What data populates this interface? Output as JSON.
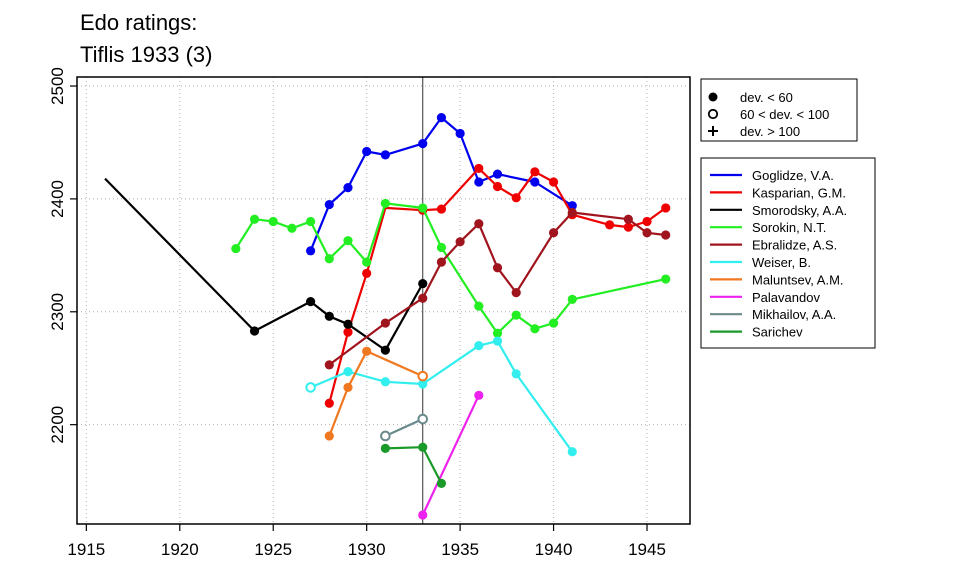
{
  "chart_data": {
    "type": "line",
    "title_line1": "Edo ratings:",
    "title_line2": "Tiflis 1933 (3)",
    "xlabel": "",
    "ylabel": "",
    "xlim": [
      1914.5,
      1947.3
    ],
    "ylim": [
      2112,
      2508
    ],
    "xticks": [
      1915,
      1920,
      1925,
      1930,
      1935,
      1940,
      1945
    ],
    "yticks": [
      2200,
      2300,
      2400,
      2500
    ],
    "grid": true,
    "reference_line_x": 1933,
    "marker_legend": [
      {
        "symbol": "filled-circle",
        "label": "dev. < 60"
      },
      {
        "symbol": "open-circle",
        "label": "60 < dev. < 100"
      },
      {
        "symbol": "plus",
        "label": "dev. > 100"
      }
    ],
    "series": [
      {
        "name": "Goglidze, V.A.",
        "color": "#0000ee",
        "points": [
          [
            1927,
            2354,
            "filled"
          ],
          [
            1928,
            2395,
            "filled"
          ],
          [
            1929,
            2410,
            "filled"
          ],
          [
            1930,
            2442,
            "filled"
          ],
          [
            1931,
            2439,
            "filled"
          ],
          [
            1933,
            2449,
            "filled"
          ],
          [
            1934,
            2472,
            "filled"
          ],
          [
            1935,
            2458,
            "filled"
          ],
          [
            1936,
            2415,
            "filled"
          ],
          [
            1937,
            2422,
            "filled"
          ],
          [
            1939,
            2415,
            "filled"
          ],
          [
            1941,
            2394,
            "filled"
          ]
        ]
      },
      {
        "name": "Kasparian, G.M.",
        "color": "#ee0000",
        "points": [
          [
            1928,
            2219,
            "filled"
          ],
          [
            1929,
            2282,
            "filled"
          ],
          [
            1930,
            2334,
            "filled"
          ],
          [
            1931,
            2392,
            "none"
          ],
          [
            1933,
            2390,
            "filled"
          ],
          [
            1934,
            2391,
            "filled"
          ],
          [
            1936,
            2427,
            "filled"
          ],
          [
            1937,
            2411,
            "filled"
          ],
          [
            1938,
            2401,
            "filled"
          ],
          [
            1939,
            2424,
            "filled"
          ],
          [
            1940,
            2415,
            "filled"
          ],
          [
            1941,
            2386,
            "filled"
          ],
          [
            1943,
            2377,
            "filled"
          ],
          [
            1944,
            2375,
            "filled"
          ],
          [
            1945,
            2380,
            "filled"
          ],
          [
            1946,
            2392,
            "filled"
          ]
        ]
      },
      {
        "name": "Smorodsky, A.A.",
        "color": "#000000",
        "points": [
          [
            1916,
            2418,
            "none"
          ],
          [
            1924,
            2283,
            "filled"
          ],
          [
            1927,
            2309,
            "filled"
          ],
          [
            1928,
            2296,
            "filled"
          ],
          [
            1929,
            2289,
            "filled"
          ],
          [
            1931,
            2266,
            "filled"
          ],
          [
            1933,
            2325,
            "filled"
          ]
        ]
      },
      {
        "name": "Sorokin, N.T.",
        "color": "#22ee22",
        "points": [
          [
            1923,
            2356,
            "filled"
          ],
          [
            1924,
            2382,
            "filled"
          ],
          [
            1925,
            2380,
            "filled"
          ],
          [
            1926,
            2374,
            "filled"
          ],
          [
            1927,
            2380,
            "filled"
          ],
          [
            1928,
            2347,
            "filled"
          ],
          [
            1929,
            2363,
            "filled"
          ],
          [
            1930,
            2344,
            "filled"
          ],
          [
            1931,
            2396,
            "filled"
          ],
          [
            1933,
            2392,
            "filled"
          ],
          [
            1934,
            2357,
            "filled"
          ],
          [
            1936,
            2305,
            "filled"
          ],
          [
            1937,
            2281,
            "filled"
          ],
          [
            1938,
            2297,
            "filled"
          ],
          [
            1939,
            2285,
            "filled"
          ],
          [
            1940,
            2290,
            "filled"
          ],
          [
            1941,
            2311,
            "filled"
          ],
          [
            1946,
            2329,
            "filled"
          ]
        ]
      },
      {
        "name": "Ebralidze, A.S.",
        "color": "#a0141e",
        "points": [
          [
            1928,
            2253,
            "filled"
          ],
          [
            1931,
            2290,
            "filled"
          ],
          [
            1933,
            2312,
            "filled"
          ],
          [
            1934,
            2344,
            "filled"
          ],
          [
            1935,
            2362,
            "filled"
          ],
          [
            1936,
            2378,
            "filled"
          ],
          [
            1937,
            2339,
            "filled"
          ],
          [
            1938,
            2317,
            "filled"
          ],
          [
            1940,
            2370,
            "filled"
          ],
          [
            1941,
            2388,
            "filled"
          ],
          [
            1944,
            2382,
            "filled"
          ],
          [
            1945,
            2370,
            "filled"
          ],
          [
            1946,
            2368,
            "filled"
          ]
        ]
      },
      {
        "name": "Weiser, B.",
        "color": "#33eeee",
        "points": [
          [
            1927,
            2233,
            "open"
          ],
          [
            1929,
            2247,
            "filled"
          ],
          [
            1931,
            2238,
            "filled"
          ],
          [
            1933,
            2236,
            "filled"
          ],
          [
            1936,
            2270,
            "filled"
          ],
          [
            1937,
            2274,
            "filled"
          ],
          [
            1938,
            2245,
            "filled"
          ],
          [
            1941,
            2176,
            "filled"
          ]
        ]
      },
      {
        "name": "Maluntsev, A.M.",
        "color": "#f07820",
        "points": [
          [
            1928,
            2190,
            "filled"
          ],
          [
            1929,
            2233,
            "filled"
          ],
          [
            1930,
            2265,
            "filled"
          ],
          [
            1933,
            2243,
            "open"
          ]
        ]
      },
      {
        "name": "Palavandov",
        "color": "#ee22ee",
        "points": [
          [
            1933,
            2120,
            "filled"
          ],
          [
            1936,
            2226,
            "filled"
          ]
        ]
      },
      {
        "name": "Mikhailov, A.A.",
        "color": "#6a8a8c",
        "points": [
          [
            1931,
            2190,
            "open"
          ],
          [
            1933,
            2205,
            "open"
          ]
        ]
      },
      {
        "name": "Sarichev",
        "color": "#1a9a28",
        "points": [
          [
            1931,
            2179,
            "filled"
          ],
          [
            1933,
            2180,
            "filled"
          ],
          [
            1934,
            2148,
            "filled"
          ]
        ]
      }
    ]
  }
}
